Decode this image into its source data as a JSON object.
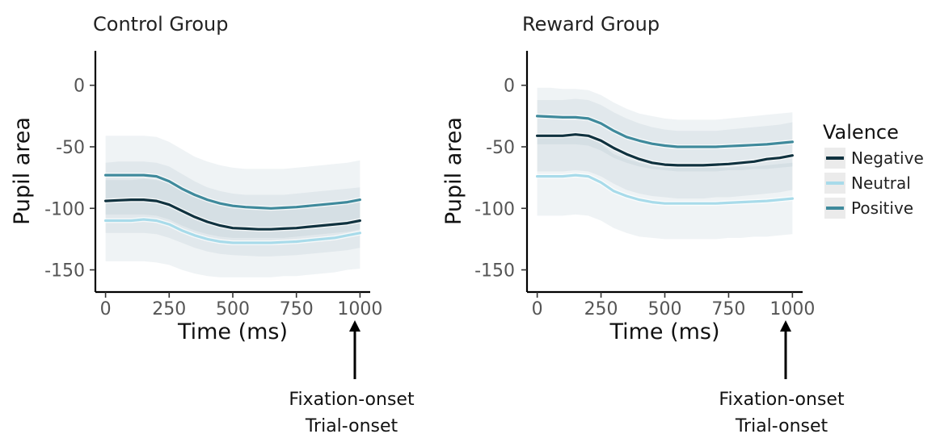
{
  "chart_data": [
    {
      "type": "line",
      "title": "Control Group",
      "xlabel": "Time (ms)",
      "ylabel": "Pupil area",
      "xlim": [
        -40,
        1040
      ],
      "ylim": [
        -168,
        28
      ],
      "xticks": [
        0,
        250,
        500,
        750,
        1000
      ],
      "yticks": [
        0,
        -50,
        -100,
        -150
      ],
      "x": [
        0,
        50,
        100,
        150,
        200,
        250,
        300,
        350,
        400,
        450,
        500,
        550,
        600,
        650,
        700,
        750,
        800,
        850,
        900,
        950,
        1000
      ],
      "series": [
        {
          "name": "Negative",
          "color": "#10323f",
          "values": [
            -94,
            -93.5,
            -93,
            -93,
            -94,
            -97,
            -102,
            -107,
            -111,
            -114,
            -116,
            -116.5,
            -117,
            -117,
            -116.5,
            -116,
            -115,
            -114,
            -113,
            -112,
            -110
          ],
          "lower": [
            -120,
            -120,
            -120,
            -120,
            -121,
            -124,
            -128,
            -132,
            -135,
            -137,
            -138,
            -138.5,
            -139,
            -139,
            -138.5,
            -138,
            -137,
            -136,
            -135,
            -134,
            -132
          ],
          "upper": [
            -63,
            -62,
            -62,
            -62,
            -63,
            -66,
            -72,
            -78,
            -83,
            -86,
            -88,
            -89,
            -89,
            -89,
            -89,
            -88,
            -87,
            -86,
            -85,
            -84,
            -83
          ]
        },
        {
          "name": "Neutral",
          "color": "#a8dbea",
          "values": [
            -110,
            -110,
            -110,
            -109,
            -110,
            -113,
            -118,
            -122,
            -125,
            -127,
            -128,
            -128,
            -128,
            -128,
            -127.5,
            -127,
            -126,
            -125,
            -124,
            -122,
            -120
          ],
          "lower": [
            -143,
            -143,
            -143,
            -143,
            -144,
            -146,
            -150,
            -153,
            -155,
            -156,
            -156,
            -156,
            -156,
            -156,
            -155,
            -155,
            -154,
            -153,
            -152,
            -150,
            -149
          ],
          "upper": [
            -77,
            -77,
            -77,
            -76,
            -77,
            -80,
            -85,
            -90,
            -94,
            -97,
            -99,
            -100,
            -100,
            -100,
            -99,
            -99,
            -98,
            -97,
            -96,
            -94,
            -92
          ]
        },
        {
          "name": "Positive",
          "color": "#3f8a9c",
          "values": [
            -73,
            -73,
            -73,
            -73,
            -74,
            -78,
            -84,
            -89,
            -93,
            -96,
            -98,
            -99,
            -99.5,
            -100,
            -99.5,
            -99,
            -98,
            -97,
            -96,
            -95,
            -93
          ],
          "lower": [
            -105,
            -105,
            -105,
            -105,
            -106,
            -109,
            -114,
            -118,
            -121,
            -123,
            -124,
            -124,
            -124,
            -124,
            -124,
            -123,
            -122,
            -121,
            -120,
            -119,
            -117
          ],
          "upper": [
            -41,
            -41,
            -41,
            -41,
            -42,
            -46,
            -52,
            -58,
            -62,
            -65,
            -67,
            -68,
            -68,
            -68,
            -68,
            -67,
            -66,
            -65,
            -64,
            -63,
            -61
          ]
        }
      ],
      "annotation": {
        "x": 1000,
        "lines": [
          "Fixation-onset",
          "Trial-onset"
        ]
      }
    },
    {
      "type": "line",
      "title": "Reward Group",
      "xlabel": "Time (ms)",
      "ylabel": "Pupil area",
      "xlim": [
        -40,
        1040
      ],
      "ylim": [
        -168,
        28
      ],
      "xticks": [
        0,
        250,
        500,
        750,
        1000
      ],
      "yticks": [
        0,
        -50,
        -100,
        -150
      ],
      "x": [
        0,
        50,
        100,
        150,
        200,
        250,
        300,
        350,
        400,
        450,
        500,
        550,
        600,
        650,
        700,
        750,
        800,
        850,
        900,
        950,
        1000
      ],
      "series": [
        {
          "name": "Negative",
          "color": "#10323f",
          "values": [
            -41,
            -41,
            -41,
            -40,
            -41,
            -45,
            -51,
            -56,
            -60,
            -63,
            -64.5,
            -65,
            -65,
            -65,
            -64.5,
            -64,
            -63,
            -62,
            -60,
            -59,
            -57
          ],
          "lower": [
            -70,
            -70,
            -70,
            -69,
            -70,
            -74,
            -80,
            -85,
            -88,
            -90,
            -91,
            -92,
            -92,
            -92,
            -91,
            -91,
            -90,
            -89,
            -88,
            -87,
            -85
          ],
          "upper": [
            -12,
            -12,
            -12,
            -11,
            -12,
            -16,
            -22,
            -27,
            -31,
            -34,
            -36,
            -37,
            -37,
            -37,
            -37,
            -36,
            -35,
            -34,
            -33,
            -32,
            -30
          ]
        },
        {
          "name": "Neutral",
          "color": "#a8dbea",
          "values": [
            -74,
            -74,
            -74,
            -73,
            -74,
            -79,
            -86,
            -90,
            -93,
            -95,
            -96,
            -96,
            -96,
            -96,
            -96,
            -95.5,
            -95,
            -94.5,
            -94,
            -93,
            -92
          ],
          "lower": [
            -106,
            -106,
            -106,
            -105,
            -106,
            -110,
            -116,
            -120,
            -123,
            -124,
            -125,
            -125,
            -125,
            -125,
            -125,
            -124,
            -124,
            -123,
            -123,
            -122,
            -121
          ],
          "upper": [
            -42,
            -42,
            -42,
            -41,
            -42,
            -48,
            -56,
            -60,
            -63,
            -66,
            -67,
            -67,
            -67,
            -67,
            -67,
            -67,
            -66,
            -66,
            -65,
            -64,
            -63
          ]
        },
        {
          "name": "Positive",
          "color": "#3f8a9c",
          "values": [
            -25,
            -25.5,
            -26,
            -26,
            -27,
            -31,
            -37,
            -42,
            -45,
            -47.5,
            -49,
            -50,
            -50,
            -50,
            -50,
            -49.5,
            -49,
            -48.5,
            -48,
            -47,
            -46
          ],
          "lower": [
            -48,
            -48,
            -48,
            -48,
            -49,
            -53,
            -59,
            -63,
            -66,
            -68,
            -69,
            -70,
            -70,
            -70,
            -70,
            -69,
            -69,
            -68,
            -68,
            -67,
            -66
          ],
          "upper": [
            -2,
            -2,
            -3,
            -3,
            -4,
            -8,
            -14,
            -19,
            -23,
            -25,
            -27,
            -28,
            -28,
            -28,
            -28,
            -27,
            -26,
            -25,
            -24,
            -23,
            -22
          ]
        }
      ],
      "annotation": {
        "x": 1000,
        "lines": [
          "Fixation-onset",
          "Trial-onset"
        ]
      }
    }
  ],
  "legend": {
    "title": "Valence",
    "placement": "right",
    "items": [
      {
        "label": "Negative",
        "color": "#10323f"
      },
      {
        "label": "Neutral",
        "color": "#a8dbea"
      },
      {
        "label": "Positive",
        "color": "#3f8a9c"
      }
    ]
  }
}
